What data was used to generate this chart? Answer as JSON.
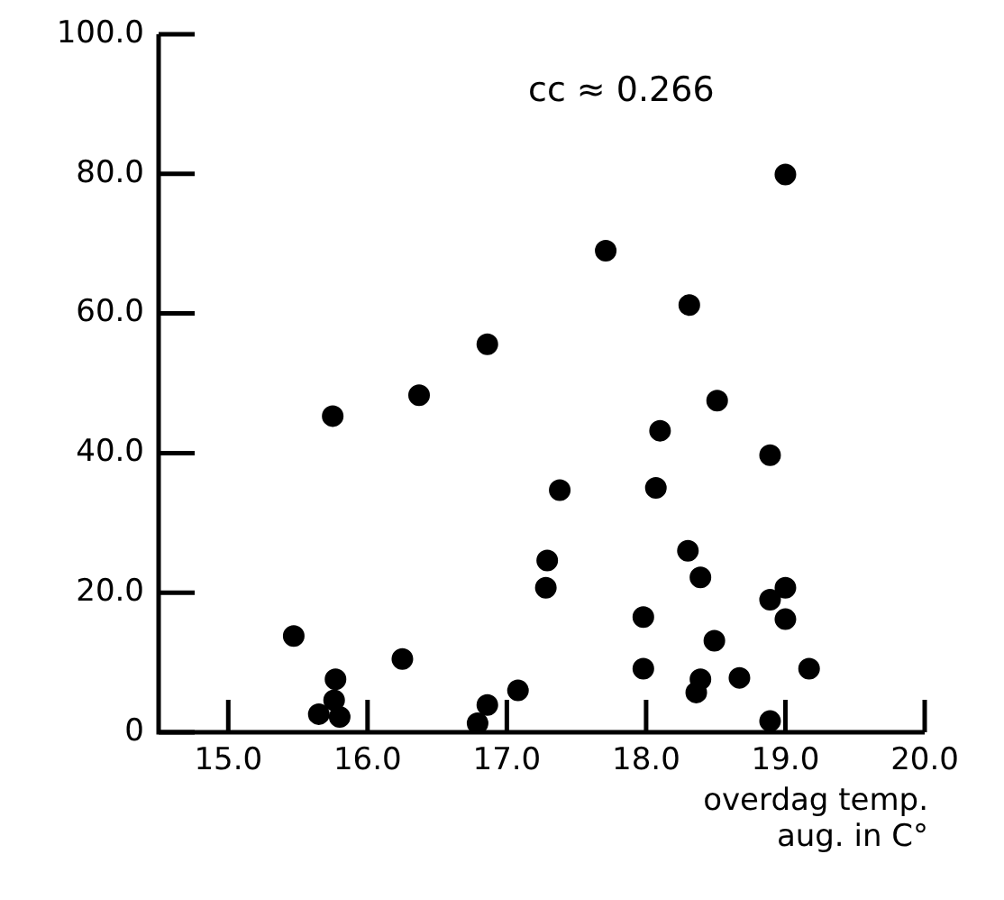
{
  "chart_data": {
    "type": "scatter",
    "xlabel": "overdag temp.\naug. in C°",
    "annotations": [
      "cc ≈ 0.266"
    ],
    "series": [
      {
        "color": "#000000",
        "x": [
          15.47,
          15.75,
          15.77,
          15.76,
          15.65,
          15.8,
          16.25,
          16.37,
          16.86,
          16.86,
          16.79,
          17.08,
          17.38,
          17.29,
          17.28,
          17.71,
          19.0,
          18.31,
          18.51,
          18.1,
          18.89,
          18.07,
          18.3,
          18.39,
          19.0,
          18.89,
          19.0,
          17.98,
          18.49,
          17.98,
          19.17,
          18.67,
          18.39,
          18.36,
          18.89
        ],
        "values": [
          13.8,
          45.3,
          7.6,
          4.6,
          2.6,
          2.2,
          10.5,
          48.3,
          55.6,
          3.9,
          1.3,
          6.0,
          34.7,
          24.6,
          20.7,
          69.0,
          79.9,
          61.2,
          47.5,
          43.2,
          39.7,
          35.0,
          26.0,
          22.2,
          20.7,
          19.0,
          16.2,
          16.5,
          13.1,
          9.1,
          9.1,
          7.8,
          7.6,
          5.7,
          1.6
        ]
      }
    ],
    "xlim": [
      14.5,
      20.0
    ],
    "ylim": [
      0,
      100
    ],
    "xticks": [
      {
        "value": 15,
        "label": "15.0"
      },
      {
        "value": 16,
        "label": "16.0"
      },
      {
        "value": 17,
        "label": "17.0"
      },
      {
        "value": 18,
        "label": "18.0"
      },
      {
        "value": 19,
        "label": "19.0"
      },
      {
        "value": 20,
        "label": "20.0"
      }
    ],
    "yticks": [
      {
        "value": 0,
        "label": "0"
      },
      {
        "value": 20,
        "label": "20.0"
      },
      {
        "value": 40,
        "label": "40.0"
      },
      {
        "value": 60,
        "label": "60.0"
      },
      {
        "value": 80,
        "label": "80.0"
      },
      {
        "value": 100,
        "label": "100.0"
      }
    ],
    "grid": false,
    "legend": false,
    "marker": "circle"
  }
}
